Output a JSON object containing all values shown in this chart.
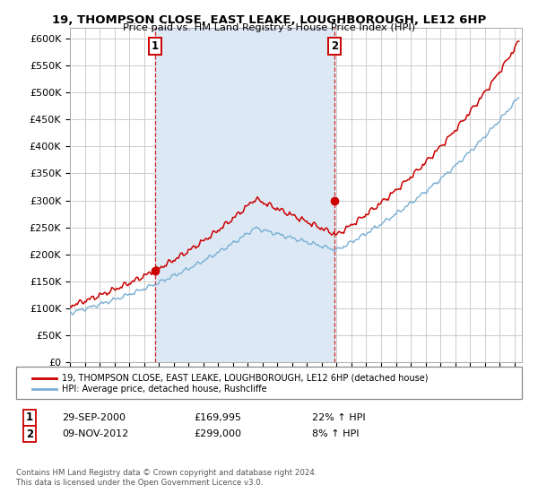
{
  "title": "19, THOMPSON CLOSE, EAST LEAKE, LOUGHBOROUGH, LE12 6HP",
  "subtitle": "Price paid vs. HM Land Registry's House Price Index (HPI)",
  "ylabel_ticks": [
    "£0",
    "£50K",
    "£100K",
    "£150K",
    "£200K",
    "£250K",
    "£300K",
    "£350K",
    "£400K",
    "£450K",
    "£500K",
    "£550K",
    "£600K"
  ],
  "ylim": [
    0,
    620000
  ],
  "xlim_start": 1995.25,
  "xlim_end": 2025.5,
  "purchase1": {
    "label": "1",
    "date": "29-SEP-2000",
    "price": 169995,
    "pct": "22%",
    "dir": "↑",
    "x": 2000.75
  },
  "purchase2": {
    "label": "2",
    "date": "09-NOV-2012",
    "price": 299000,
    "pct": "8%",
    "dir": "↑",
    "x": 2012.86
  },
  "legend_line1": "19, THOMPSON CLOSE, EAST LEAKE, LOUGHBOROUGH, LE12 6HP (detached house)",
  "legend_line2": "HPI: Average price, detached house, Rushcliffe",
  "footer1": "Contains HM Land Registry data © Crown copyright and database right 2024.",
  "footer2": "This data is licensed under the Open Government Licence v3.0.",
  "line_color_red": "#cc0000",
  "line_color_blue": "#7aafd4",
  "shade_color": "#dce9f5",
  "marker_color": "#cc0000",
  "dashed_color": "#cc0000",
  "bg_color": "#ffffff",
  "grid_color": "#cccccc"
}
